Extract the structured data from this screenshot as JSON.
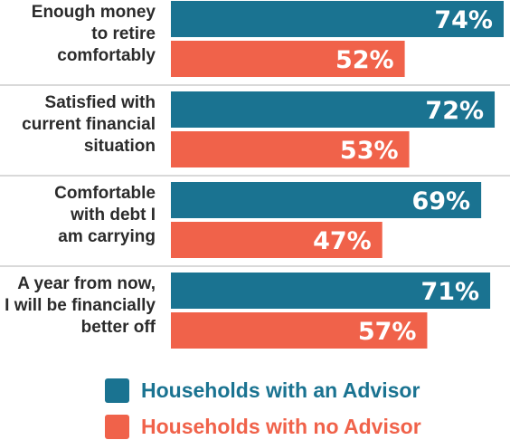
{
  "chart_data": {
    "type": "bar",
    "orientation": "horizontal",
    "categories": [
      [
        "Enough money",
        "to retire",
        "comfortably"
      ],
      [
        "Satisfied with",
        "current financial",
        "situation"
      ],
      [
        "Comfortable",
        "with debt I",
        "am carrying"
      ],
      [
        "A year from now,",
        "I will be financially",
        "better off"
      ]
    ],
    "series": [
      {
        "name": "Households with an Advisor",
        "values": [
          74,
          72,
          69,
          71
        ],
        "labels": [
          "74%",
          "72%",
          "69%",
          "71%"
        ],
        "color": "#1a7391"
      },
      {
        "name": "Households with no Advisor",
        "values": [
          52,
          53,
          47,
          57
        ],
        "labels": [
          "52%",
          "53%",
          "47%",
          "57%"
        ],
        "color": "#f0624a"
      }
    ],
    "xlim": [
      0,
      74
    ],
    "grid": false,
    "legend_position": "bottom"
  },
  "colors": {
    "advisor": "#1a7391",
    "no_advisor": "#f0624a",
    "separator": "#d9d9d9",
    "label_text": "#2b2b2b"
  },
  "legend": [
    {
      "label": "Households with an Advisor",
      "color": "#1a7391"
    },
    {
      "label": "Households with no Advisor",
      "color": "#f0624a"
    }
  ]
}
